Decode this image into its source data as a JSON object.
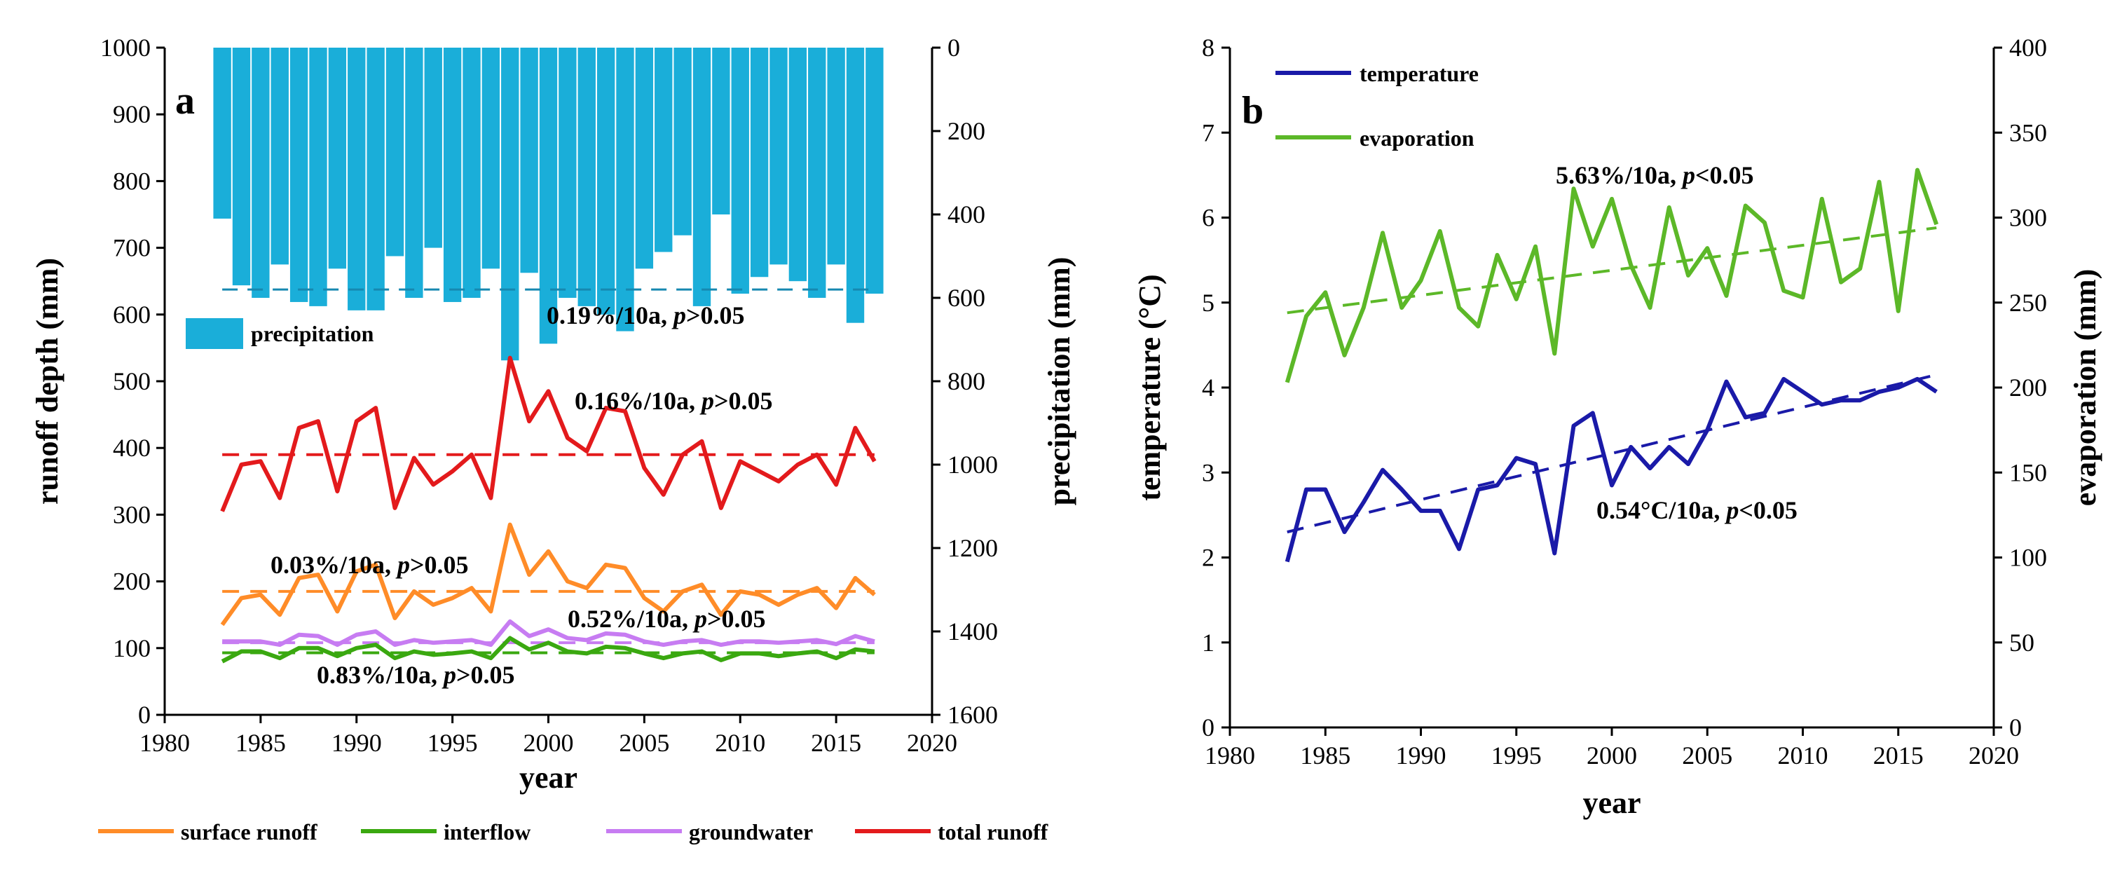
{
  "chart_data": [
    {
      "type": "line",
      "panel": "a",
      "xlabel": "year",
      "ylabel": "runoff depth (mm)",
      "y2label": "precipitation (mm)",
      "xlim": [
        1980,
        2020
      ],
      "ylim": [
        0,
        1000
      ],
      "y2lim": [
        0,
        1600
      ],
      "y2_inverted": true,
      "x_ticks": [
        "1980",
        "1985",
        "1990",
        "1995",
        "2000",
        "2005",
        "2010",
        "2015",
        "2020"
      ],
      "y_ticks": [
        "0",
        "100",
        "200",
        "300",
        "400",
        "500",
        "600",
        "700",
        "800",
        "900",
        "1000"
      ],
      "y2_ticks": [
        "0",
        "200",
        "400",
        "600",
        "800",
        "1000",
        "1200",
        "1400",
        "1600"
      ],
      "x": [
        1983,
        1984,
        1985,
        1986,
        1987,
        1988,
        1989,
        1990,
        1991,
        1992,
        1993,
        1994,
        1995,
        1996,
        1997,
        1998,
        1999,
        2000,
        2001,
        2002,
        2003,
        2004,
        2005,
        2006,
        2007,
        2008,
        2009,
        2010,
        2011,
        2012,
        2013,
        2014,
        2015,
        2016,
        2017
      ],
      "bar_series": {
        "name": "precipitation",
        "color": "#1aaed9",
        "values": [
          410,
          570,
          600,
          520,
          610,
          620,
          530,
          630,
          630,
          500,
          600,
          480,
          610,
          600,
          530,
          750,
          540,
          710,
          600,
          620,
          640,
          680,
          530,
          490,
          450,
          620,
          400,
          590,
          550,
          520,
          560,
          600,
          520,
          660,
          590
        ],
        "trend": {
          "start": 580,
          "end": 580
        },
        "trend_label": "0.19%/10a, p>0.05"
      },
      "series": [
        {
          "name": "total runoff",
          "color": "#e31a1c",
          "values": [
            305,
            375,
            380,
            325,
            430,
            440,
            335,
            440,
            460,
            310,
            385,
            345,
            365,
            390,
            325,
            535,
            440,
            485,
            415,
            395,
            460,
            455,
            370,
            330,
            390,
            410,
            310,
            380,
            365,
            350,
            375,
            390,
            345,
            430,
            380
          ],
          "trend": {
            "start": 390,
            "end": 390
          },
          "trend_label": "0.16%/10a, p>0.05"
        },
        {
          "name": "surface runoff",
          "color": "#ff8c28",
          "values": [
            135,
            175,
            180,
            150,
            205,
            210,
            155,
            215,
            225,
            145,
            185,
            165,
            175,
            190,
            155,
            285,
            210,
            245,
            200,
            190,
            225,
            220,
            175,
            155,
            185,
            195,
            150,
            185,
            180,
            165,
            180,
            190,
            160,
            205,
            180
          ],
          "trend": {
            "start": 185,
            "end": 185
          },
          "trend_label": "0.03%/10a, p>0.05"
        },
        {
          "name": "groundwater",
          "color": "#c77cf2",
          "values": [
            110,
            110,
            110,
            105,
            120,
            118,
            105,
            120,
            125,
            105,
            112,
            108,
            110,
            112,
            105,
            140,
            118,
            128,
            115,
            112,
            122,
            120,
            110,
            105,
            110,
            112,
            105,
            110,
            110,
            108,
            110,
            112,
            106,
            118,
            110
          ],
          "trend": {
            "start": 108,
            "end": 108
          },
          "trend_label": "0.52%/10a, p>0.05"
        },
        {
          "name": "interflow",
          "color": "#3aa810",
          "values": [
            80,
            95,
            95,
            85,
            100,
            100,
            88,
            100,
            105,
            85,
            95,
            90,
            92,
            95,
            85,
            115,
            98,
            108,
            95,
            92,
            102,
            100,
            92,
            85,
            92,
            95,
            82,
            92,
            92,
            88,
            92,
            95,
            85,
            98,
            95
          ],
          "trend": {
            "start": 93,
            "end": 93
          },
          "trend_label": "0.83%/10a, p>0.05"
        }
      ],
      "legend_order": [
        "surface runoff",
        "interflow",
        "groundwater",
        "total runoff"
      ],
      "legend_position": "bottom"
    },
    {
      "type": "line",
      "panel": "b",
      "xlabel": "year",
      "ylabel": "temperature (°C)",
      "y2label": "evaporation (mm)",
      "xlim": [
        1980,
        2020
      ],
      "ylim": [
        0,
        8
      ],
      "y2lim": [
        0,
        400
      ],
      "x_ticks": [
        "1980",
        "1985",
        "1990",
        "1995",
        "2000",
        "2005",
        "2010",
        "2015",
        "2020"
      ],
      "y_ticks": [
        "0",
        "1",
        "2",
        "3",
        "4",
        "5",
        "6",
        "7",
        "8"
      ],
      "y2_ticks": [
        "0",
        "50",
        "100",
        "150",
        "200",
        "250",
        "300",
        "350",
        "400"
      ],
      "x": [
        1983,
        1984,
        1985,
        1986,
        1987,
        1988,
        1989,
        1990,
        1991,
        1992,
        1993,
        1994,
        1995,
        1996,
        1997,
        1998,
        1999,
        2000,
        2001,
        2002,
        2003,
        2004,
        2005,
        2006,
        2007,
        2008,
        2009,
        2010,
        2011,
        2012,
        2013,
        2014,
        2015,
        2016,
        2017
      ],
      "series": [
        {
          "name": "temperature",
          "axis": "left",
          "color": "#1a1aa8",
          "values": [
            1.95,
            2.8,
            2.8,
            2.3,
            2.65,
            3.03,
            2.8,
            2.55,
            2.55,
            2.1,
            2.8,
            2.85,
            3.17,
            3.1,
            2.05,
            3.55,
            3.7,
            2.85,
            3.3,
            3.05,
            3.3,
            3.1,
            3.5,
            4.07,
            3.65,
            3.7,
            4.1,
            3.95,
            3.8,
            3.85,
            3.85,
            3.95,
            4.0,
            4.1,
            3.95
          ],
          "trend": {
            "start": 2.3,
            "end": 4.15
          },
          "trend_label": "0.54°C/10a, p<0.05"
        },
        {
          "name": "evaporation",
          "axis": "right",
          "color": "#5cb828",
          "values": [
            203,
            242,
            256,
            219,
            247,
            291,
            247,
            263,
            292,
            247,
            236,
            278,
            252,
            283,
            220,
            317,
            283,
            311,
            272,
            247,
            306,
            266,
            282,
            254,
            307,
            297,
            257,
            253,
            311,
            262,
            270,
            321,
            245,
            328,
            296
          ],
          "trend": {
            "start": 244,
            "end": 294
          },
          "trend_label": "5.63%/10a, p<0.05"
        }
      ],
      "legend_order": [
        "temperature",
        "evaporation"
      ],
      "legend_position": "top-left"
    }
  ],
  "labels": {
    "panel_a_letter": "a",
    "panel_b_letter": "b",
    "p_symbol": "p"
  }
}
